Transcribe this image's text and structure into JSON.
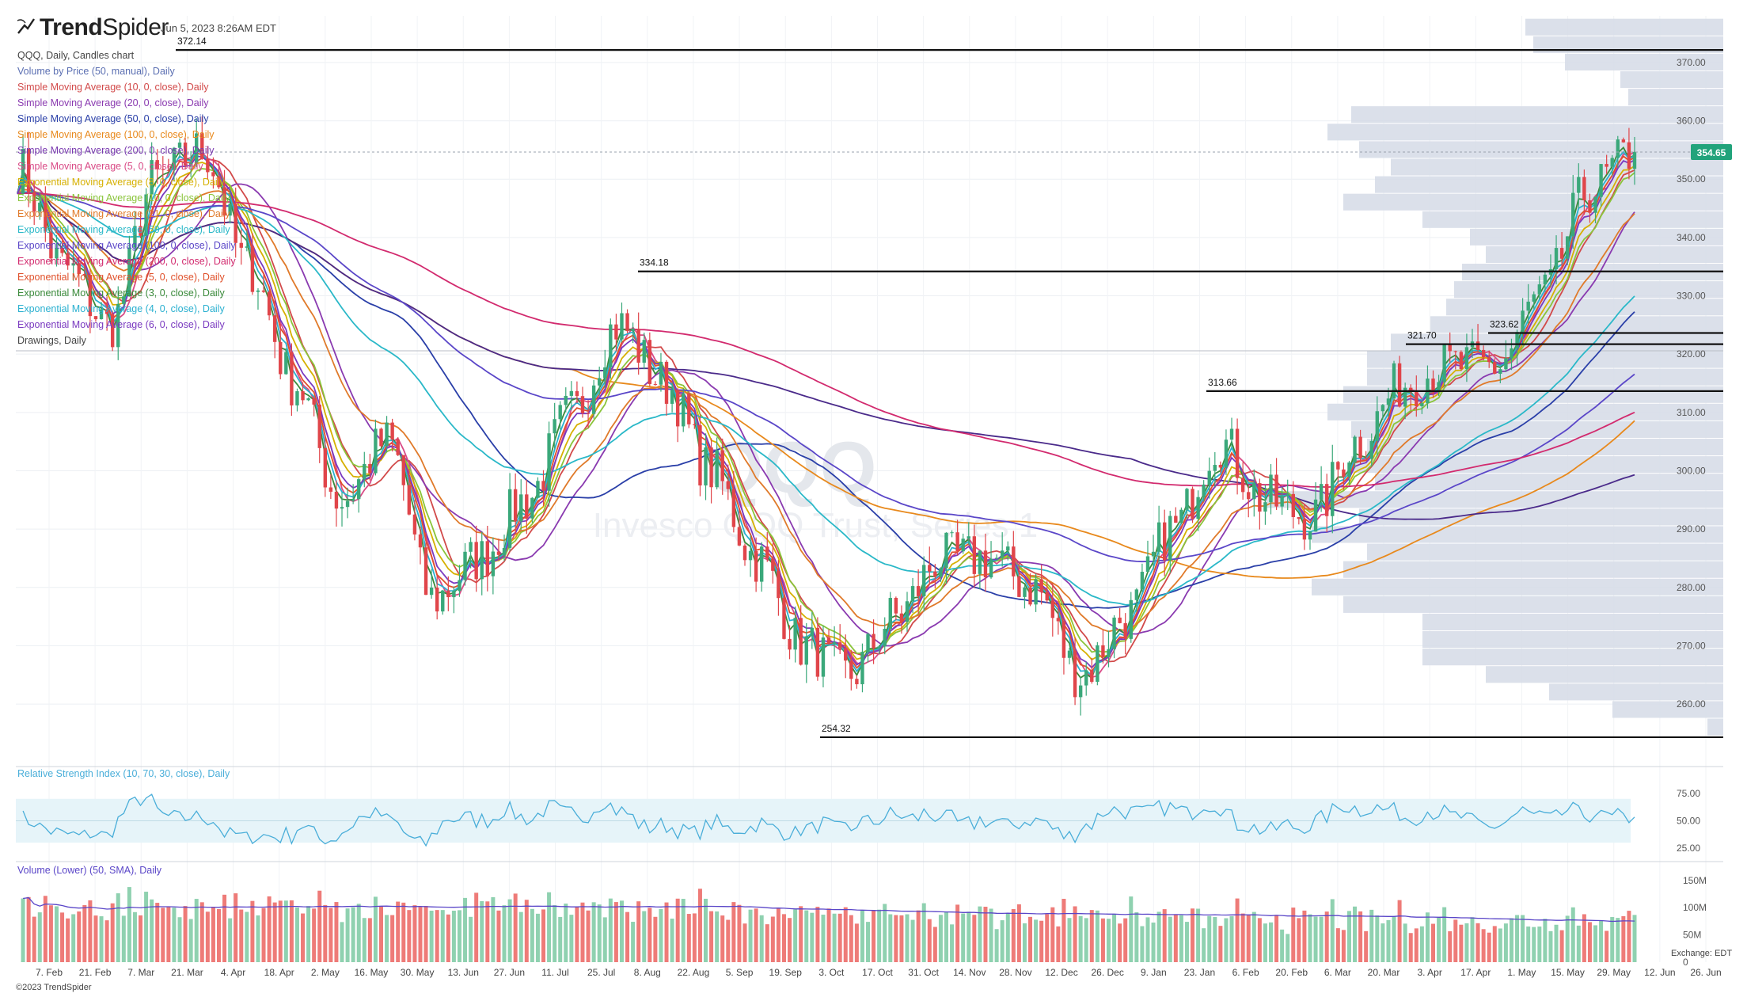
{
  "header": {
    "brand_bold": "Trend",
    "brand_light": "Spider",
    "timestamp": "Jun 5, 2023 8:26AM EDT"
  },
  "legend": [
    {
      "text": "QQQ, Daily, Candles chart",
      "color": "#444444"
    },
    {
      "text": "Volume by Price (50, manual), Daily",
      "color": "#5b6fb2"
    },
    {
      "text": "Simple Moving Average (10, 0, close), Daily",
      "color": "#d24a4a"
    },
    {
      "text": "Simple Moving Average (20, 0, close), Daily",
      "color": "#8a3ab0"
    },
    {
      "text": "Simple Moving Average (50, 0, close), Daily",
      "color": "#2a3fa8"
    },
    {
      "text": "Simple Moving Average (100, 0, close), Daily",
      "color": "#e8891c"
    },
    {
      "text": "Simple Moving Average (200, 0, close), Daily",
      "color": "#7a3ab0"
    },
    {
      "text": "Simple Moving Average (5, 0, close), Daily",
      "color": "#d94a86"
    },
    {
      "text": "Exponential Moving Average (8, 0, close), Daily",
      "color": "#d6b000"
    },
    {
      "text": "Exponential Moving Average (10, 0, close), Daily",
      "color": "#8ac43a"
    },
    {
      "text": "Exponential Moving Average (21, 0, close), Daily",
      "color": "#e07a2a"
    },
    {
      "text": "Exponential Moving Average (50, 0, close), Daily",
      "color": "#2ab8c8"
    },
    {
      "text": "Exponential Moving Average (100, 0, close), Daily",
      "color": "#5a46c8"
    },
    {
      "text": "Exponential Moving Average (200, 0, close), Daily",
      "color": "#d22a6e"
    },
    {
      "text": "Exponential Moving Average (5, 0, close), Daily",
      "color": "#e0502a"
    },
    {
      "text": "Exponential Moving Average (3, 0, close), Daily",
      "color": "#3a8a3a"
    },
    {
      "text": "Exponential Moving Average (4, 0, close), Daily",
      "color": "#2ab0d0"
    },
    {
      "text": "Exponential Moving Average (6, 0, close), Daily",
      "color": "#7a3ac0"
    },
    {
      "text": "Drawings, Daily",
      "color": "#444444"
    }
  ],
  "watermark": {
    "symbol": "QQQ",
    "name": "Invesco QQQ Trust, Series 1"
  },
  "colors": {
    "up": "#26a69a",
    "down": "#ef5350",
    "up_candle": "#3aa87a",
    "down_candle": "#e0454a",
    "vbp": "#d5dae6",
    "level_line": "#111111",
    "price_tag": "#21a37b"
  },
  "price_axis": {
    "ticks": [
      "370.00",
      "360.00",
      "350.00",
      "340.00",
      "330.00",
      "320.00",
      "310.00",
      "300.00",
      "290.00",
      "280.00",
      "270.00",
      "260.00"
    ],
    "current_price_label": "354.65"
  },
  "levels": [
    {
      "label": "372.14",
      "value": 372.14
    },
    {
      "label": "334.18",
      "value": 334.18
    },
    {
      "label": "313.66",
      "value": 313.66
    },
    {
      "label": "321.70",
      "value": 321.7
    },
    {
      "label": "323.62",
      "value": 323.62
    },
    {
      "label": "254.32",
      "value": 254.32
    }
  ],
  "x_axis_labels": [
    "7. Feb",
    "21. Feb",
    "7. Mar",
    "21. Mar",
    "4. Apr",
    "18. Apr",
    "2. May",
    "16. May",
    "30. May",
    "13. Jun",
    "27. Jun",
    "11. Jul",
    "25. Jul",
    "8. Aug",
    "22. Aug",
    "5. Sep",
    "19. Sep",
    "3. Oct",
    "17. Oct",
    "31. Oct",
    "14. Nov",
    "28. Nov",
    "12. Dec",
    "26. Dec",
    "9. Jan",
    "23. Jan",
    "6. Feb",
    "20. Feb",
    "6. Mar",
    "20. Mar",
    "3. Apr",
    "17. Apr",
    "1. May",
    "15. May",
    "29. May",
    "12. Jun",
    "26. Jun"
  ],
  "rsi": {
    "title": "Relative Strength Index (10, 70, 30, close), Daily",
    "ticks": [
      "75.00",
      "50.00",
      "25.00"
    ],
    "color": "#4aaed9"
  },
  "volume": {
    "title": "Volume (Lower) (50, SMA), Daily",
    "ticks": [
      "150M",
      "100M",
      "50M",
      "0"
    ],
    "exchange": "Exchange: EDT"
  },
  "footer": {
    "copyright": "©2023 TrendSpider"
  },
  "chart_data": {
    "type": "candlestick",
    "symbol": "QQQ",
    "timeframe": "Daily",
    "x": [
      "2022-02-07",
      "2022-02-21",
      "2022-03-07",
      "2022-03-21",
      "2022-04-04",
      "2022-04-18",
      "2022-05-02",
      "2022-05-16",
      "2022-05-30",
      "2022-06-13",
      "2022-06-27",
      "2022-07-11",
      "2022-07-25",
      "2022-08-08",
      "2022-08-22",
      "2022-09-05",
      "2022-09-19",
      "2022-10-03",
      "2022-10-17",
      "2022-10-31",
      "2022-11-14",
      "2022-11-28",
      "2022-12-12",
      "2022-12-26",
      "2023-01-09",
      "2023-01-23",
      "2023-02-06",
      "2023-02-20",
      "2023-03-06",
      "2023-03-20",
      "2023-04-03",
      "2023-04-17",
      "2023-05-01",
      "2023-05-15",
      "2023-05-29",
      "2023-06-02"
    ],
    "close": [
      352,
      335,
      325,
      350,
      355,
      335,
      315,
      295,
      305,
      278,
      285,
      295,
      310,
      325,
      315,
      300,
      285,
      270,
      265,
      275,
      285,
      285,
      280,
      265,
      275,
      290,
      305,
      295,
      292,
      305,
      315,
      318,
      318,
      330,
      348,
      354.65
    ],
    "ylim": [
      252,
      378
    ],
    "rsi_range": [
      20,
      85
    ],
    "volume_unit": "M"
  }
}
